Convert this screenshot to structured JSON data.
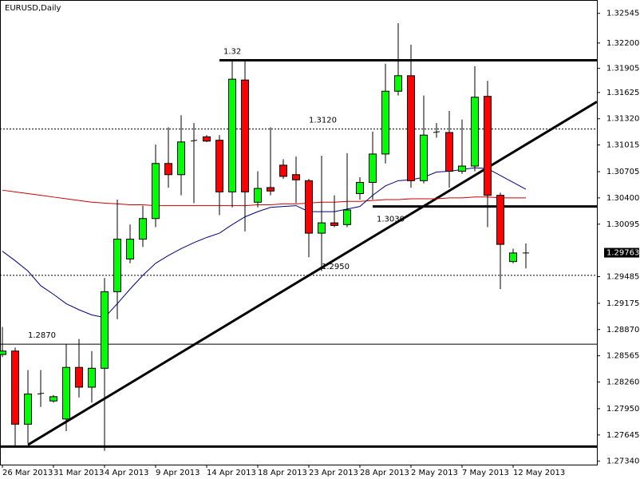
{
  "chart_data": {
    "type": "candlestick",
    "title": "EURUSD,Daily",
    "categories": [
      "26 Mar 2013",
      null,
      null,
      null,
      "31 Mar 2013",
      null,
      null,
      null,
      "4 Apr 2013",
      null,
      null,
      null,
      "9 Apr 2013",
      null,
      null,
      null,
      "14 Apr 2013",
      null,
      null,
      null,
      "18 Apr 2013",
      null,
      null,
      null,
      "23 Apr 2013",
      null,
      null,
      null,
      "28 Apr 2013",
      null,
      null,
      null,
      "2 May 2013",
      null,
      null,
      null,
      "7 May 2013",
      null,
      null,
      null,
      "12 May 2013",
      null
    ],
    "open": [
      1.2858,
      1.2862,
      1.2777,
      1.2812,
      1.2804,
      1.2783,
      1.2843,
      1.282,
      1.2842,
      1.2931,
      1.2969,
      1.2992,
      1.3016,
      1.308,
      1.3067,
      1.3106,
      1.3111,
      1.3107,
      1.3047,
      1.3177,
      1.3035,
      1.3052,
      1.3078,
      1.3067,
      1.306,
      1.2999,
      1.3011,
      1.3009,
      1.3045,
      1.3058,
      1.3091,
      1.3164,
      1.3182,
      1.306,
      1.3116,
      1.3116,
      1.3071,
      1.3077,
      1.3158,
      1.3043,
      1.2966,
      1.2976
    ],
    "high": [
      1.289,
      1.2866,
      1.284,
      1.284,
      1.2811,
      1.287,
      1.2876,
      1.2862,
      1.2947,
      1.3038,
      1.3009,
      1.3031,
      1.3102,
      1.3122,
      1.3136,
      1.3127,
      1.3113,
      1.3113,
      1.3199,
      1.3199,
      1.3071,
      1.3122,
      1.3085,
      1.3088,
      1.3062,
      1.3089,
      1.3043,
      1.3092,
      1.3064,
      1.3117,
      1.3196,
      1.3243,
      1.3218,
      1.3159,
      1.3127,
      1.3141,
      1.3131,
      1.3193,
      1.3176,
      1.3046,
      1.2981,
      1.2987
    ],
    "low": [
      1.2855,
      1.2751,
      1.2755,
      1.2797,
      1.2802,
      1.2769,
      1.2808,
      1.2802,
      1.2746,
      1.2899,
      1.2964,
      1.2983,
      1.3006,
      1.3052,
      1.3043,
      1.3034,
      1.3105,
      1.302,
      1.3029,
      1.3001,
      1.3029,
      1.3043,
      1.3062,
      1.3034,
      1.2971,
      1.2955,
      1.3006,
      1.3006,
      1.3038,
      1.3038,
      1.308,
      1.3159,
      1.3052,
      1.3057,
      1.311,
      1.3052,
      1.3068,
      1.3071,
      1.3006,
      1.2934,
      1.2964,
      1.2958
    ],
    "close": [
      1.2862,
      1.2777,
      1.2812,
      1.2813,
      1.2809,
      1.2843,
      1.282,
      1.2842,
      1.2931,
      1.2992,
      1.2992,
      1.3016,
      1.308,
      1.3067,
      1.3105,
      1.3107,
      1.3106,
      1.3047,
      1.3178,
      1.3047,
      1.3051,
      1.3048,
      1.3065,
      1.3061,
      1.2999,
      1.3011,
      1.3008,
      1.3026,
      1.3058,
      1.3091,
      1.3164,
      1.3182,
      1.306,
      1.3113,
      1.3117,
      1.3071,
      1.3077,
      1.3157,
      1.3043,
      1.2986,
      1.2976,
      1.2976
    ],
    "up_color": "#00ff00",
    "down_color": "#ff0000",
    "series": [
      {
        "color": "#cc0000",
        "values": [
          1.3049,
          1.3047,
          1.3045,
          1.3043,
          1.3041,
          1.3039,
          1.3037,
          1.3035,
          1.3034,
          1.3033,
          1.3032,
          1.3032,
          1.3031,
          1.3031,
          1.3031,
          1.3031,
          1.3031,
          1.3031,
          1.3031,
          1.3031,
          1.3032,
          1.3032,
          1.3033,
          1.3033,
          1.3034,
          1.3035,
          1.3035,
          1.3036,
          1.3036,
          1.3037,
          1.3038,
          1.3038,
          1.3039,
          1.3039,
          1.3039,
          1.304,
          1.304,
          1.3041,
          1.3041,
          1.304,
          1.304,
          1.304
        ]
      },
      {
        "color": "#000080",
        "values": [
          1.2978,
          1.2967,
          1.2955,
          1.2938,
          1.2928,
          1.2917,
          1.291,
          1.2904,
          1.2901,
          1.2917,
          1.2934,
          1.295,
          1.2964,
          1.2973,
          1.2981,
          1.2988,
          1.2994,
          1.2999,
          1.3009,
          1.3018,
          1.3024,
          1.3029,
          1.303,
          1.3031,
          1.3024,
          1.3024,
          1.3024,
          1.3027,
          1.303,
          1.3043,
          1.3054,
          1.306,
          1.3061,
          1.3064,
          1.307,
          1.3071,
          1.3073,
          1.3075,
          1.3074,
          1.3066,
          1.3058,
          1.305
        ]
      }
    ],
    "levels": [
      {
        "value": 1.32,
        "style": "thick",
        "start": 17
      },
      {
        "value": 1.312,
        "label": "1.3120",
        "style": "dotted"
      },
      {
        "value": 1.303,
        "label": "1.3030",
        "style": "thick",
        "start": 29
      },
      {
        "value": 1.295,
        "label": "1.2950",
        "style": "dotted"
      },
      {
        "value": 1.287,
        "label": "1.2870",
        "style": "solid"
      },
      {
        "value": 1.2751,
        "style": "thick"
      }
    ],
    "trendline": {
      "x": [
        2,
        41
      ],
      "y": [
        1.2753,
        1.3102
      ]
    },
    "current_price": 1.29763,
    "ylim": [
      1.273,
      1.327
    ],
    "yticks": [
      1.32545,
      {
        "value": 1.322,
        "label": "1.32200"
      },
      1.31905,
      1.31625,
      {
        "value": 1.3132,
        "label": "1.31320"
      },
      1.31015,
      1.30705,
      {
        "value": 1.304,
        "label": "1.30400"
      },
      1.30095,
      1.29485,
      1.29175,
      {
        "value": 1.2887,
        "label": "1.28870"
      },
      1.28565,
      {
        "value": 1.2826,
        "label": "1.28260"
      },
      {
        "value": 1.2795,
        "label": "1.27950"
      },
      1.27645,
      {
        "value": 1.2734,
        "label": "1.27340"
      }
    ]
  }
}
